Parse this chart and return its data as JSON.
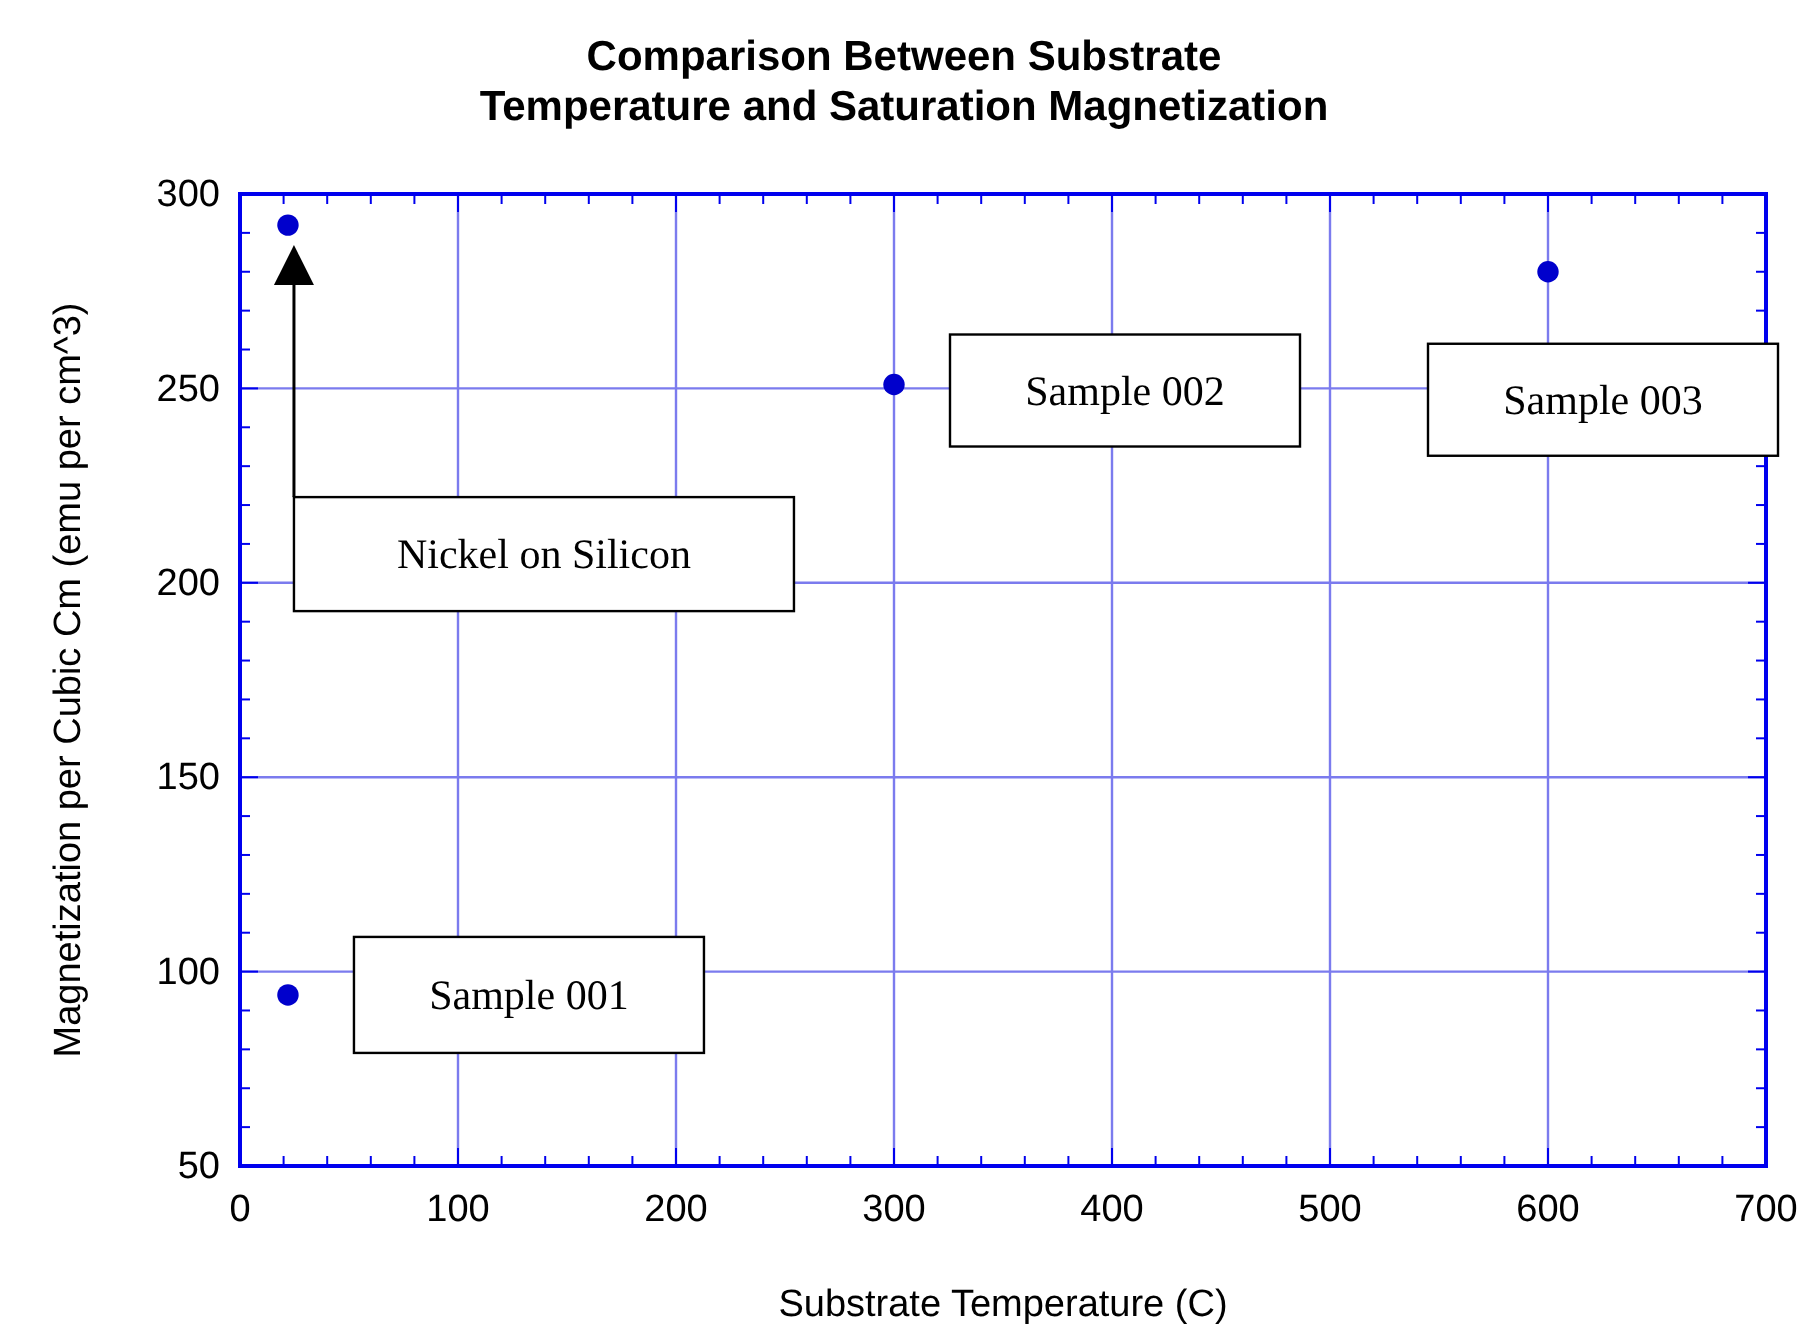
{
  "chart_data": {
    "type": "scatter",
    "title": "Comparison Between Substrate\nTemperature and Saturation Magnetization",
    "xlabel": "Substrate Temperature (C)",
    "ylabel": "Magnetization per Cubic Cm (emu per cm^3)",
    "x": [
      22,
      22,
      300,
      600
    ],
    "series": [
      {
        "color": "#0000cc",
        "values": [
          94,
          292,
          251,
          280
        ]
      }
    ],
    "xlim": [
      0,
      700
    ],
    "xticks": [
      0,
      100,
      200,
      300,
      400,
      500,
      600,
      700
    ],
    "ylim": [
      50,
      300
    ],
    "yticks": [
      50,
      100,
      150,
      200,
      250,
      300
    ],
    "grid": true,
    "marker": "circle",
    "annotations": [
      "Sample 001",
      "Nickel on Silicon",
      "Sample 002",
      "Sample 003"
    ]
  }
}
